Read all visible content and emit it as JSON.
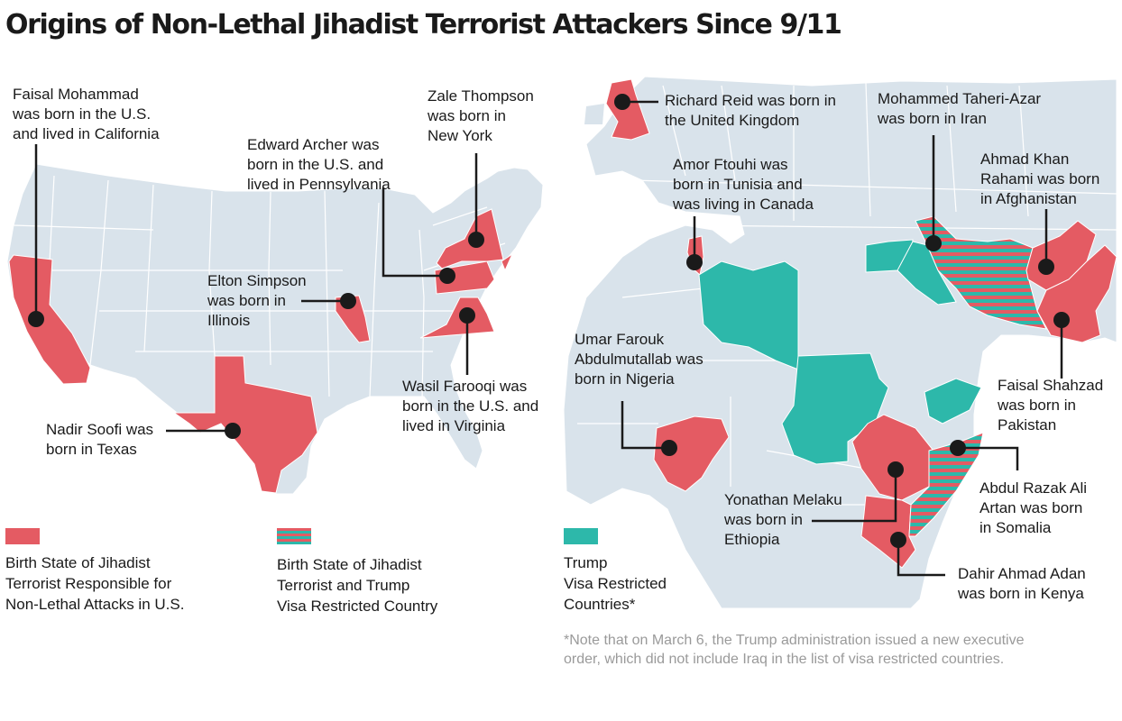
{
  "title": "Origins of Non-Lethal Jihadist Terrorist Attackers Since 9/11",
  "colors": {
    "land": "#d9e3eb",
    "borders": "#ffffff",
    "birth_state": "#e45b63",
    "visa_restricted": "#2db8aa",
    "leader": "#1a1a1a",
    "note_text": "#9a9a9a"
  },
  "usa_labels": {
    "mohammad": [
      "Faisal Mohammad",
      "was born in the U.S.",
      "and lived in California"
    ],
    "archer": [
      "Edward Archer was",
      "born in the U.S. and",
      "lived in Pennsylvania"
    ],
    "thompson": [
      "Zale Thompson",
      "was born in",
      "New York"
    ],
    "simpson": [
      "Elton Simpson",
      "was born in",
      "Illinois"
    ],
    "farooqi": [
      "Wasil Farooqi was",
      "born in the U.S. and",
      "lived in Virginia"
    ],
    "soofi": [
      "Nadir Soofi was",
      "born in Texas"
    ]
  },
  "world_labels": {
    "reid": [
      "Richard Reid was born in",
      "the United Kingdom"
    ],
    "taheri": [
      "Mohammed Taheri-Azar",
      "was born in Iran"
    ],
    "ftouhi": [
      "Amor Ftouhi was",
      "born in Tunisia and",
      "was living in Canada"
    ],
    "rahami": [
      "Ahmad Khan",
      "Rahami was born",
      "in Afghanistan"
    ],
    "abdulmutallab": [
      "Umar Farouk",
      "Abdulmutallab was",
      "born in Nigeria"
    ],
    "shahzad": [
      "Faisal Shahzad",
      "was born in",
      "Pakistan"
    ],
    "artan": [
      "Abdul Razak Ali",
      "Artan was born",
      "in Somalia"
    ],
    "melaku": [
      "Yonathan Melaku",
      "was born in",
      "Ethiopia"
    ],
    "adan": [
      "Dahir Ahmad Adan",
      "was born in Kenya"
    ]
  },
  "legend": {
    "birth_state": [
      "Birth State of Jihadist",
      "Terrorist Responsible for",
      "Non-Lethal Attacks in U.S."
    ],
    "both": [
      "Birth State of Jihadist",
      "Terrorist and Trump",
      "Visa Restricted Country"
    ],
    "visa": [
      "Trump",
      "Visa Restricted",
      "Countries*"
    ]
  },
  "note": [
    "*Note that on March 6, the Trump administration issued a new executive",
    "order, which did not include Iraq in the list of visa restricted countries."
  ]
}
